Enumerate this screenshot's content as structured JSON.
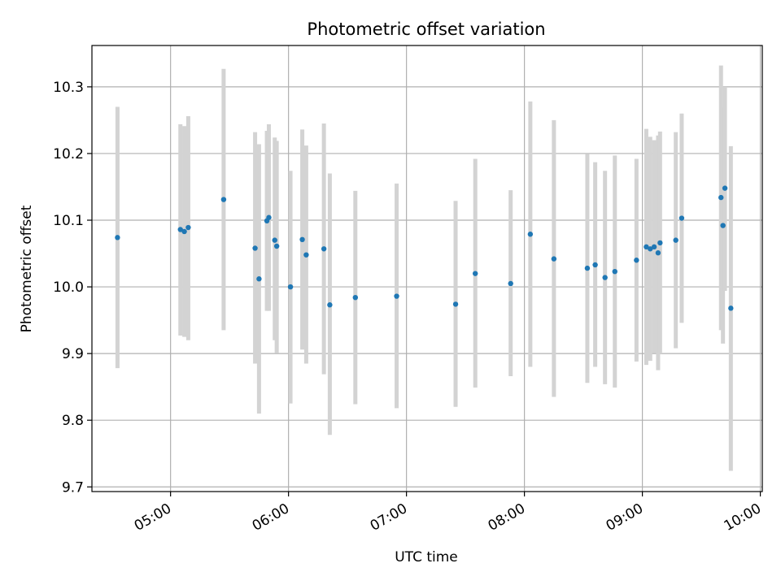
{
  "chart_data": {
    "type": "scatter",
    "title": "Photometric offset variation",
    "xlabel": "UTC time",
    "ylabel": "Photometric offset",
    "x_unit": "HH:MM UTC",
    "xlim": [
      "04:20",
      "10:01"
    ],
    "ylim": [
      9.693,
      10.362
    ],
    "x_ticks": [
      "05:00",
      "06:00",
      "07:00",
      "08:00",
      "09:00",
      "10:00"
    ],
    "y_ticks": [
      9.7,
      9.8,
      9.9,
      10.0,
      10.1,
      10.2,
      10.3
    ],
    "grid": true,
    "colors": {
      "point": "#1f77b4",
      "errorbar": "#d3d3d3",
      "grid": "#b0b0b0"
    },
    "points": [
      {
        "t": "04:33",
        "y": 10.074,
        "lo": 9.878,
        "hi": 10.27
      },
      {
        "t": "05:05",
        "y": 10.086,
        "lo": 9.927,
        "hi": 10.244
      },
      {
        "t": "05:07",
        "y": 10.083,
        "lo": 9.925,
        "hi": 10.241
      },
      {
        "t": "05:09",
        "y": 10.089,
        "lo": 9.92,
        "hi": 10.256
      },
      {
        "t": "05:27",
        "y": 10.131,
        "lo": 9.935,
        "hi": 10.327
      },
      {
        "t": "05:43",
        "y": 10.058,
        "lo": 9.885,
        "hi": 10.232
      },
      {
        "t": "05:45",
        "y": 10.012,
        "lo": 9.81,
        "hi": 10.214
      },
      {
        "t": "05:49",
        "y": 10.099,
        "lo": 9.964,
        "hi": 10.234
      },
      {
        "t": "05:50",
        "y": 10.104,
        "lo": 9.964,
        "hi": 10.244
      },
      {
        "t": "05:53",
        "y": 10.07,
        "lo": 9.92,
        "hi": 10.224
      },
      {
        "t": "05:54",
        "y": 10.061,
        "lo": 9.901,
        "hi": 10.219
      },
      {
        "t": "06:01",
        "y": 10.0,
        "lo": 9.825,
        "hi": 10.174
      },
      {
        "t": "06:07",
        "y": 10.071,
        "lo": 9.906,
        "hi": 10.236
      },
      {
        "t": "06:09",
        "y": 10.048,
        "lo": 9.885,
        "hi": 10.212
      },
      {
        "t": "06:18",
        "y": 10.057,
        "lo": 9.869,
        "hi": 10.245
      },
      {
        "t": "06:21",
        "y": 9.973,
        "lo": 9.778,
        "hi": 10.17
      },
      {
        "t": "06:34",
        "y": 9.984,
        "lo": 9.824,
        "hi": 10.144
      },
      {
        "t": "06:55",
        "y": 9.986,
        "lo": 9.818,
        "hi": 10.155
      },
      {
        "t": "07:25",
        "y": 9.974,
        "lo": 9.82,
        "hi": 10.129
      },
      {
        "t": "07:35",
        "y": 10.02,
        "lo": 9.849,
        "hi": 10.192
      },
      {
        "t": "07:53",
        "y": 10.005,
        "lo": 9.866,
        "hi": 10.145
      },
      {
        "t": "08:03",
        "y": 10.079,
        "lo": 9.88,
        "hi": 10.278
      },
      {
        "t": "08:15",
        "y": 10.042,
        "lo": 9.835,
        "hi": 10.25
      },
      {
        "t": "08:32",
        "y": 10.028,
        "lo": 9.856,
        "hi": 10.199
      },
      {
        "t": "08:36",
        "y": 10.033,
        "lo": 9.88,
        "hi": 10.187
      },
      {
        "t": "08:41",
        "y": 10.014,
        "lo": 9.854,
        "hi": 10.174
      },
      {
        "t": "08:46",
        "y": 10.023,
        "lo": 9.849,
        "hi": 10.197
      },
      {
        "t": "08:57",
        "y": 10.04,
        "lo": 9.888,
        "hi": 10.192
      },
      {
        "t": "09:02",
        "y": 10.06,
        "lo": 9.883,
        "hi": 10.237
      },
      {
        "t": "09:04",
        "y": 10.057,
        "lo": 9.889,
        "hi": 10.225
      },
      {
        "t": "09:06",
        "y": 10.06,
        "lo": 9.901,
        "hi": 10.22
      },
      {
        "t": "09:08",
        "y": 10.051,
        "lo": 9.875,
        "hi": 10.227
      },
      {
        "t": "09:09",
        "y": 10.066,
        "lo": 9.9,
        "hi": 10.233
      },
      {
        "t": "09:17",
        "y": 10.07,
        "lo": 9.908,
        "hi": 10.232
      },
      {
        "t": "09:20",
        "y": 10.103,
        "lo": 9.946,
        "hi": 10.26
      },
      {
        "t": "09:40",
        "y": 10.134,
        "lo": 9.935,
        "hi": 10.332
      },
      {
        "t": "09:41",
        "y": 10.092,
        "lo": 9.915,
        "hi": 10.269
      },
      {
        "t": "09:42",
        "y": 10.148,
        "lo": 9.994,
        "hi": 10.3
      },
      {
        "t": "09:45",
        "y": 9.968,
        "lo": 9.724,
        "hi": 10.211
      }
    ]
  }
}
